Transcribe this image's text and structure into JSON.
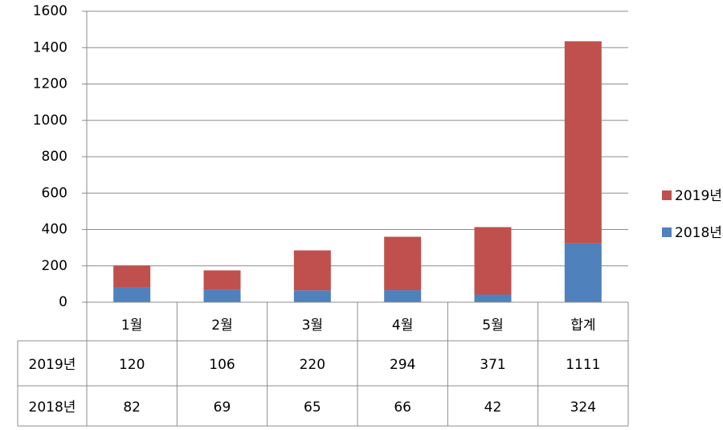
{
  "chart_data": {
    "type": "bar",
    "stacked": true,
    "categories": [
      "1월",
      "2월",
      "3월",
      "4월",
      "5월",
      "합계"
    ],
    "series": [
      {
        "name": "2019년",
        "color": "#c0504d",
        "values": [
          120,
          106,
          220,
          294,
          371,
          1111
        ]
      },
      {
        "name": "2018년",
        "color": "#4f81bd",
        "values": [
          82,
          69,
          65,
          66,
          42,
          324
        ]
      }
    ],
    "ylim": [
      0,
      1600
    ],
    "yticks": [
      0,
      200,
      400,
      600,
      800,
      1000,
      1200,
      1400,
      1600
    ],
    "grid": true,
    "legend": "right",
    "data_table": true
  }
}
